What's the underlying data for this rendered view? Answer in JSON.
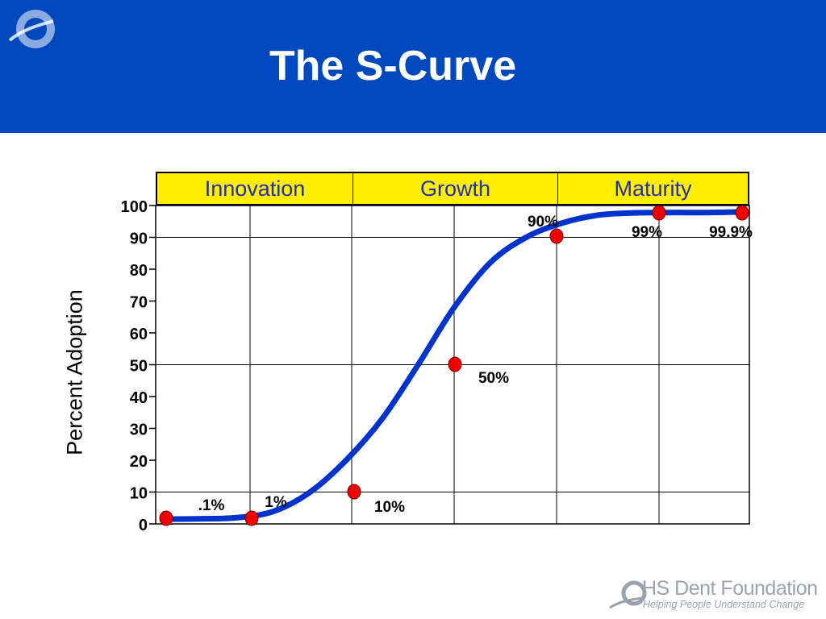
{
  "slide": {
    "title": "The S-Curve",
    "header_color": "#0048bd",
    "accent_color": "#ffee00",
    "curve_color": "#0033cc",
    "point_color": "#ee0000"
  },
  "phases": [
    {
      "label": "Innovation"
    },
    {
      "label": "Growth"
    },
    {
      "label": "Maturity"
    }
  ],
  "footer": {
    "brand": "HS Dent Foundation",
    "tagline": "Helping People Understand Change"
  },
  "chart_data": {
    "type": "line",
    "title": "The S-Curve",
    "ylabel": "Percent Adoption",
    "xlabel": "",
    "ylim": [
      0,
      100
    ],
    "yticks": [
      0,
      10,
      20,
      30,
      40,
      50,
      60,
      70,
      80,
      90,
      100
    ],
    "grid": true,
    "series": [
      {
        "values": [
          1.5,
          1.6,
          2,
          4,
          10,
          20,
          33,
          50,
          68,
          82,
          90,
          94.5,
          97,
          97.7,
          97.8,
          97.8,
          98
        ]
      }
    ],
    "milestones": [
      {
        "label": ".1%",
        "y": 0.1
      },
      {
        "label": "1%",
        "y": 1
      },
      {
        "label": "10%",
        "y": 10
      },
      {
        "label": "50%",
        "y": 50
      },
      {
        "label": "90%",
        "y": 90
      },
      {
        "label": "99%",
        "y": 99
      },
      {
        "label": "99.9%",
        "y": 99.9
      }
    ]
  }
}
